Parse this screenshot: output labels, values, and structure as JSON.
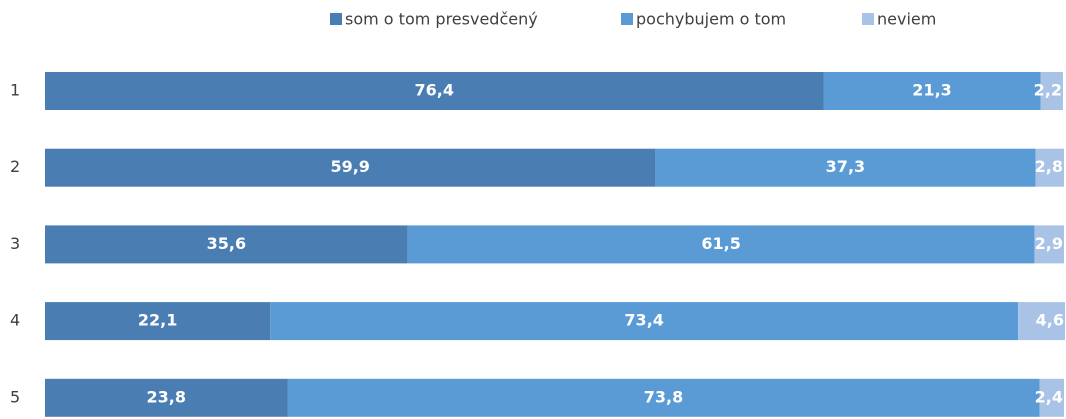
{
  "chart_data": {
    "type": "stacked_barh",
    "categories": [
      "1",
      "2",
      "3",
      "4",
      "5"
    ],
    "series": [
      {
        "name": "som o tom presvedčený",
        "color": "#4a7eb3",
        "values": [
          76.4,
          59.9,
          35.6,
          22.1,
          23.8
        ],
        "value_labels": [
          "76,4",
          "59,9",
          "35,6",
          "22,1",
          "23,8"
        ]
      },
      {
        "name": "pochybujem o tom",
        "color": "#5b9bd5",
        "values": [
          21.3,
          37.3,
          61.5,
          73.4,
          73.8
        ],
        "value_labels": [
          "21,3",
          "37,3",
          "61,5",
          "73,4",
          "73,8"
        ]
      },
      {
        "name": "neviem",
        "color": "#a9c3e6",
        "values": [
          2.2,
          2.8,
          2.9,
          4.6,
          2.4
        ],
        "value_labels": [
          "2,2",
          "2,8",
          "2,9",
          "4,6",
          "2,4"
        ]
      }
    ],
    "xlim": [
      0,
      100
    ],
    "legend": "top"
  }
}
